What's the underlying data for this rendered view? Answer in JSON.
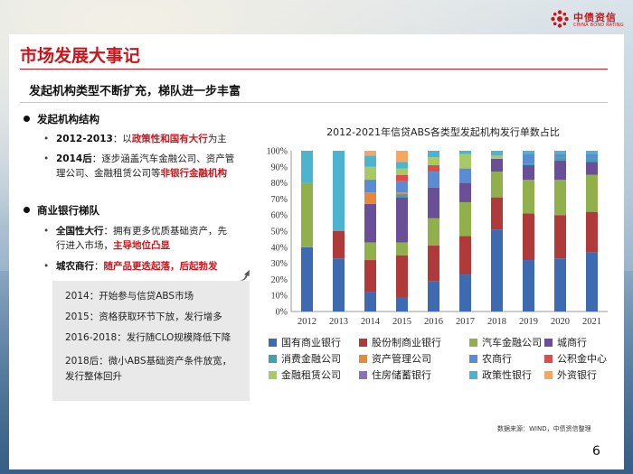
{
  "header": {
    "logo_cn": "中债资信",
    "logo_en": "CHINA BOND RATING"
  },
  "slide": {
    "title": "市场发展大事记",
    "subtitle": "发起机构类型不断扩充，梯队进一步丰富",
    "sections": [
      {
        "heading": "发起机构结构",
        "items": [
          {
            "parts": [
              {
                "t": "2012-2013",
                "s": "b"
              },
              {
                "t": "：以",
                "s": ""
              },
              {
                "t": "政策性和国有大行",
                "s": "r"
              },
              {
                "t": "为主",
                "s": ""
              }
            ]
          },
          {
            "parts": [
              {
                "t": "2014后",
                "s": "b"
              },
              {
                "t": "：逐步涵盖汽车金融公司、资产管",
                "s": ""
              }
            ]
          },
          {
            "parts": [
              {
                "t": "理公司、金融租赁公司等",
                "s": ""
              },
              {
                "t": "非银行金融机构",
                "s": "r"
              }
            ]
          }
        ]
      },
      {
        "heading": "商业银行梯队",
        "items": [
          {
            "parts": [
              {
                "t": "全国性大行",
                "s": "b"
              },
              {
                "t": "：拥有更多优质基础资产，先",
                "s": ""
              }
            ]
          },
          {
            "parts": [
              {
                "t": "行进入市场，",
                "s": ""
              },
              {
                "t": "主导地位凸显",
                "s": "r"
              }
            ]
          },
          {
            "parts": [
              {
                "t": "城农商行",
                "s": "b"
              },
              {
                "t": "：",
                "s": ""
              },
              {
                "t": "随产品更迭起落，后起勃发",
                "s": "r"
              }
            ]
          }
        ]
      }
    ],
    "callout": [
      "2014：开始参与信贷ABS市场",
      "2015：资格获取环节下放，发行增多",
      "2016-2018：发行随CLO规模降低下降",
      "2018后：微小ABS基础资产条件放宽，",
      "发行整体回升"
    ],
    "source": "数据来源：WIND，中债资信整理",
    "page_number": "6"
  },
  "chart_data": {
    "type": "bar",
    "stacked": true,
    "title": "2012-2021年信贷ABS各类型发起机构发行单数占比",
    "categories": [
      "2012",
      "2013",
      "2014",
      "2015",
      "2016",
      "2017",
      "2018",
      "2019",
      "2020",
      "2021"
    ],
    "yticks": [
      "0%",
      "10%",
      "20%",
      "30%",
      "40%",
      "50%",
      "60%",
      "70%",
      "80%",
      "90%",
      "100%"
    ],
    "ylim": [
      0,
      100
    ],
    "legend_position": "bottom",
    "series": [
      {
        "name": "国有商业银行",
        "color": "#3d6ab0",
        "values": [
          40,
          33,
          12,
          9,
          19,
          23,
          51,
          32,
          33,
          37
        ]
      },
      {
        "name": "股份制商业银行",
        "color": "#b03a3a",
        "values": [
          0,
          17,
          20,
          26,
          22,
          24,
          20,
          29,
          27,
          25
        ]
      },
      {
        "name": "汽车金融公司",
        "color": "#8fb04a",
        "values": [
          40,
          0,
          11,
          8,
          17,
          21,
          16,
          21,
          22,
          23
        ]
      },
      {
        "name": "城商行",
        "color": "#6a4f98",
        "values": [
          0,
          0,
          24,
          28,
          19,
          12,
          8,
          9,
          12,
          8
        ]
      },
      {
        "name": "消费金融公司",
        "color": "#3f9fb4",
        "values": [
          0,
          0,
          0,
          2,
          0,
          0,
          0,
          1,
          2,
          2
        ]
      },
      {
        "name": "资产管理公司",
        "color": "#e8893a",
        "values": [
          0,
          0,
          7,
          1,
          0,
          0,
          0,
          0,
          0,
          0
        ]
      },
      {
        "name": "农商行",
        "color": "#5b8bd2",
        "values": [
          0,
          0,
          8,
          7,
          10,
          9,
          0,
          6,
          2,
          3
        ]
      },
      {
        "name": "公积金中心",
        "color": "#d84d4d",
        "values": [
          0,
          0,
          0,
          4,
          4,
          0,
          0,
          0,
          0,
          0
        ]
      },
      {
        "name": "金融租赁公司",
        "color": "#a8c964",
        "values": [
          0,
          0,
          8,
          4,
          5,
          9,
          2,
          0,
          0,
          0
        ]
      },
      {
        "name": "住房储蓄银行",
        "color": "#8b72b8",
        "values": [
          0,
          0,
          0,
          0,
          0,
          0,
          0,
          0,
          0,
          0
        ]
      },
      {
        "name": "政策性银行",
        "color": "#4db4cf",
        "values": [
          20,
          50,
          7,
          4,
          4,
          2,
          3,
          2,
          2,
          2
        ]
      },
      {
        "name": "外资银行",
        "color": "#f4a760",
        "values": [
          0,
          0,
          3,
          7,
          0,
          0,
          0,
          0,
          0,
          0
        ]
      }
    ]
  }
}
